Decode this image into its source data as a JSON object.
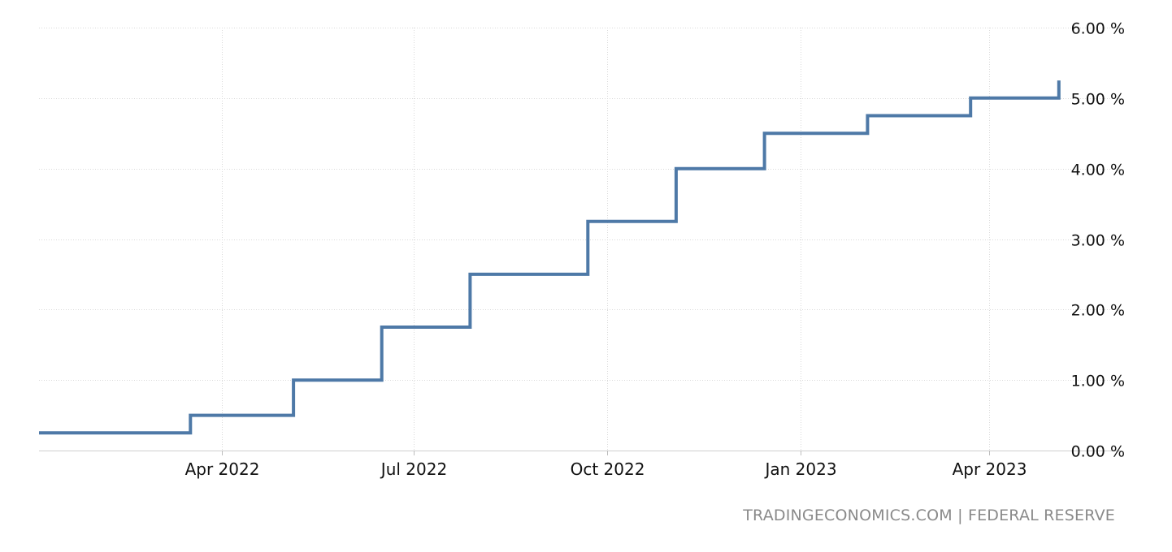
{
  "attribution": {
    "source_site": "TRADINGECONOMICS.COM",
    "separator": "|",
    "source_org": "FEDERAL RESERVE"
  },
  "chart_data": {
    "type": "line",
    "step": true,
    "title": "",
    "xlabel": "",
    "ylabel": "",
    "x_tick_labels": [
      "Apr 2022",
      "Jul 2022",
      "Oct 2022",
      "Jan 2023",
      "Apr 2023"
    ],
    "x_tick_dates": [
      "2022-04-01",
      "2022-07-01",
      "2022-10-01",
      "2023-01-01",
      "2023-04-01"
    ],
    "y_tick_labels": [
      "0.00 %",
      "1.00 %",
      "2.00 %",
      "3.00 %",
      "4.00 %",
      "5.00 %",
      "6.00 %"
    ],
    "y_ticks": [
      0,
      1,
      2,
      3,
      4,
      5,
      6
    ],
    "ylim": [
      0,
      6
    ],
    "xlim": [
      "2022-01-04",
      "2023-05-06"
    ],
    "grid": true,
    "y_axis_position": "right",
    "line_color": "#4e79a7",
    "series": [
      {
        "x": [
          "2022-01-04",
          "2022-03-17",
          "2022-05-05",
          "2022-06-16",
          "2022-07-28",
          "2022-09-22",
          "2022-11-03",
          "2022-12-15",
          "2023-02-02",
          "2023-03-23",
          "2023-05-04"
        ],
        "values": [
          0.25,
          0.5,
          1.0,
          1.75,
          2.5,
          3.25,
          4.0,
          4.5,
          4.75,
          5.0,
          5.25
        ]
      }
    ]
  }
}
